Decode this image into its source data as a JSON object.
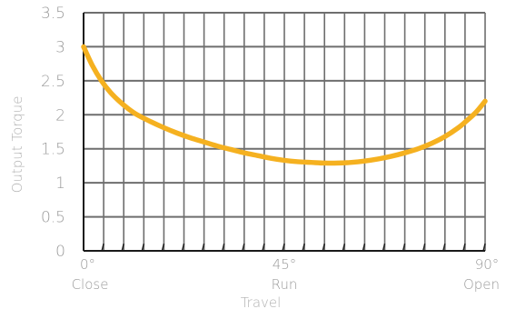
{
  "chart_data": {
    "type": "line",
    "title": "",
    "ylabel": "Output Torque",
    "xlabel": "Travel",
    "ylim": [
      0,
      3.5
    ],
    "xlim": [
      0,
      90
    ],
    "grid": true,
    "yticks": [
      "0",
      "0.5",
      "1",
      "1.5",
      "2",
      "2.5",
      "3",
      "3.5"
    ],
    "xticks": [
      {
        "value": 0,
        "label": "0°",
        "sublabel": "Close"
      },
      {
        "value": 45,
        "label": "45°",
        "sublabel": "Run"
      },
      {
        "value": 90,
        "label": "90°",
        "sublabel": "Open"
      }
    ],
    "series": [
      {
        "color": "#f5b120",
        "x": [
          0,
          2,
          4,
          6,
          8,
          10,
          12,
          15,
          18,
          21,
          24,
          27,
          30,
          33,
          36,
          39,
          42,
          45,
          48,
          51,
          54,
          57,
          60,
          63,
          66,
          69,
          72,
          75,
          78,
          81,
          84,
          86,
          88,
          90
        ],
        "y": [
          3.0,
          2.72,
          2.5,
          2.33,
          2.2,
          2.09,
          2.0,
          1.9,
          1.81,
          1.73,
          1.66,
          1.6,
          1.54,
          1.49,
          1.44,
          1.4,
          1.36,
          1.33,
          1.31,
          1.3,
          1.29,
          1.29,
          1.3,
          1.32,
          1.35,
          1.39,
          1.44,
          1.5,
          1.58,
          1.68,
          1.81,
          1.92,
          2.04,
          2.2
        ]
      }
    ]
  }
}
